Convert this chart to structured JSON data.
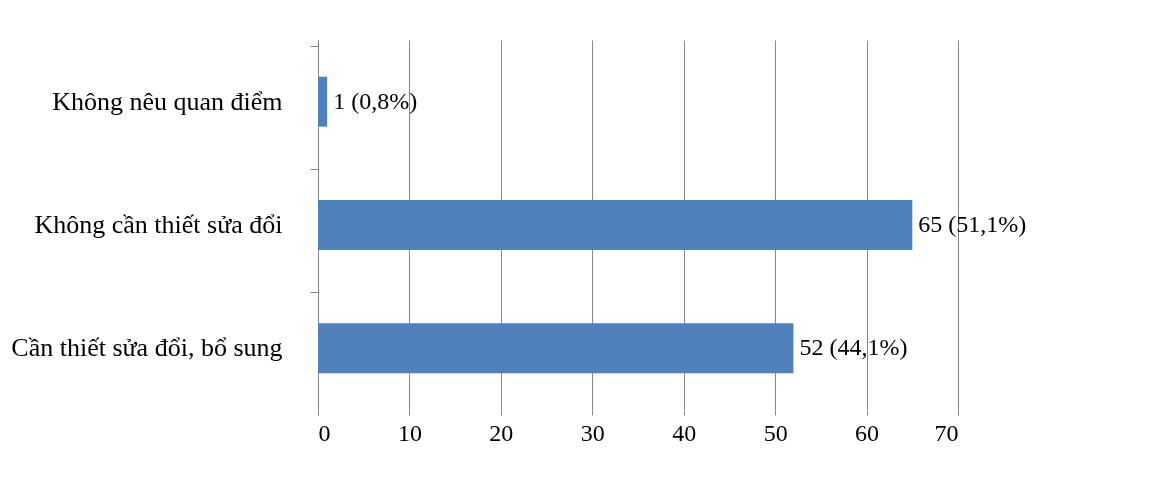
{
  "chart_data": {
    "type": "bar",
    "orientation": "horizontal",
    "categories": [
      "Không nêu quan điểm",
      "Không cần thiết sửa đổi",
      "Cần thiết sửa đổi, bổ sung"
    ],
    "values": [
      1,
      65,
      52
    ],
    "color": "#4f81bd",
    "value_labels": [
      "1 (0,8%)",
      "65 (51,1%)",
      "52 (44,1%)"
    ],
    "xlim": [
      0,
      70
    ],
    "xticks": [
      0,
      10,
      20,
      30,
      40,
      50,
      60,
      70
    ],
    "grid": "x"
  }
}
